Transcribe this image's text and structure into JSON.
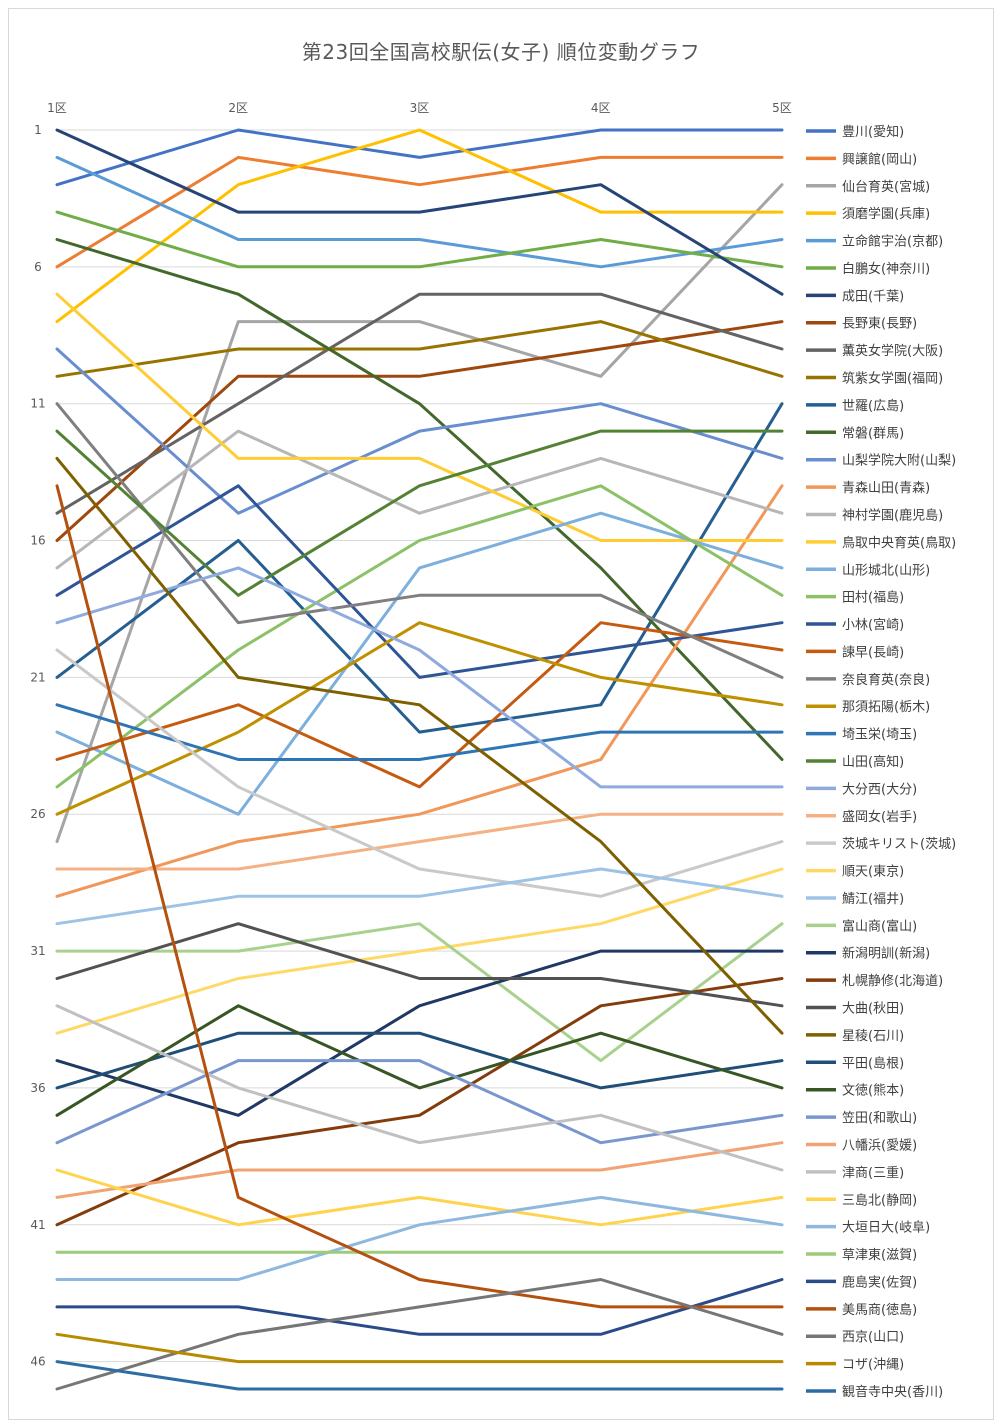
{
  "chart_data": {
    "type": "line",
    "title": "第23回全国高校駅伝(女子) 順位変動グラフ",
    "categories": [
      "1区",
      "2区",
      "3区",
      "4区",
      "5区"
    ],
    "y_ticks": [
      1,
      6,
      11,
      16,
      21,
      26,
      31,
      36,
      41,
      46
    ],
    "ylim": [
      1,
      47
    ],
    "y_inverted": true,
    "grid": true,
    "legend_position": "right",
    "series": [
      {
        "name": "豊川(愛知)",
        "color": "#4472C4",
        "values": [
          3,
          1,
          2,
          1,
          1
        ]
      },
      {
        "name": "興譲館(岡山)",
        "color": "#ED7D31",
        "values": [
          6,
          2,
          3,
          2,
          2
        ]
      },
      {
        "name": "仙台育英(宮城)",
        "color": "#A5A5A5",
        "values": [
          27,
          8,
          8,
          10,
          3
        ]
      },
      {
        "name": "須磨学園(兵庫)",
        "color": "#FFC000",
        "values": [
          8,
          3,
          1,
          4,
          4
        ]
      },
      {
        "name": "立命館宇治(京都)",
        "color": "#5B9BD5",
        "values": [
          2,
          5,
          5,
          6,
          5
        ]
      },
      {
        "name": "白鵬女(神奈川)",
        "color": "#70AD47",
        "values": [
          4,
          6,
          6,
          5,
          6
        ]
      },
      {
        "name": "成田(千葉)",
        "color": "#264478",
        "values": [
          1,
          4,
          4,
          3,
          7
        ]
      },
      {
        "name": "長野東(長野)",
        "color": "#9E480E",
        "values": [
          16,
          10,
          10,
          9,
          8
        ]
      },
      {
        "name": "薫英女学院(大阪)",
        "color": "#636363",
        "values": [
          15,
          11,
          7,
          7,
          9
        ]
      },
      {
        "name": "筑紫女学園(福岡)",
        "color": "#997300",
        "values": [
          10,
          9,
          9,
          8,
          10
        ]
      },
      {
        "name": "世羅(広島)",
        "color": "#255E91",
        "values": [
          21,
          16,
          23,
          22,
          11
        ]
      },
      {
        "name": "常磐(群馬)",
        "color": "#43682B",
        "values": [
          5,
          7,
          11,
          17,
          24
        ]
      },
      {
        "name": "山梨学院大附(山梨)",
        "color": "#698ED0",
        "values": [
          9,
          15,
          12,
          11,
          13
        ]
      },
      {
        "name": "青森山田(青森)",
        "color": "#F1975A",
        "values": [
          29,
          27,
          26,
          24,
          14
        ]
      },
      {
        "name": "神村学園(鹿児島)",
        "color": "#B7B7B7",
        "values": [
          17,
          12,
          15,
          13,
          15
        ]
      },
      {
        "name": "鳥取中央育英(鳥取)",
        "color": "#FFCD33",
        "values": [
          7,
          13,
          13,
          16,
          16
        ]
      },
      {
        "name": "山形城北(山形)",
        "color": "#7CAFDD",
        "values": [
          23,
          26,
          17,
          15,
          17
        ]
      },
      {
        "name": "田村(福島)",
        "color": "#8CC168",
        "values": [
          25,
          20,
          16,
          14,
          18
        ]
      },
      {
        "name": "小林(宮崎)",
        "color": "#2F5597",
        "values": [
          18,
          14,
          21,
          20,
          19
        ]
      },
      {
        "name": "諫早(長崎)",
        "color": "#C55A11",
        "values": [
          24,
          22,
          25,
          19,
          20
        ]
      },
      {
        "name": "奈良育英(奈良)",
        "color": "#7F7F7F",
        "values": [
          11,
          19,
          18,
          18,
          21
        ]
      },
      {
        "name": "那須拓陽(栃木)",
        "color": "#BF9000",
        "values": [
          26,
          23,
          19,
          21,
          22
        ]
      },
      {
        "name": "埼玉栄(埼玉)",
        "color": "#2E75B6",
        "values": [
          22,
          24,
          24,
          23,
          23
        ]
      },
      {
        "name": "山田(高知)",
        "color": "#548235",
        "values": [
          12,
          18,
          14,
          12,
          12
        ]
      },
      {
        "name": "大分西(大分)",
        "color": "#8FAADC",
        "values": [
          19,
          17,
          20,
          25,
          25
        ]
      },
      {
        "name": "盛岡女(岩手)",
        "color": "#F4B183",
        "values": [
          28,
          28,
          27,
          26,
          26
        ]
      },
      {
        "name": "茨城キリスト(茨城)",
        "color": "#C9C9C9",
        "values": [
          20,
          25,
          28,
          29,
          27
        ]
      },
      {
        "name": "順天(東京)",
        "color": "#FFD966",
        "values": [
          34,
          32,
          31,
          30,
          28
        ]
      },
      {
        "name": "鯖江(福井)",
        "color": "#9DC3E6",
        "values": [
          30,
          29,
          29,
          28,
          29
        ]
      },
      {
        "name": "富山商(富山)",
        "color": "#A9D18E",
        "values": [
          31,
          31,
          30,
          35,
          30
        ]
      },
      {
        "name": "新潟明訓(新潟)",
        "color": "#203864",
        "values": [
          35,
          37,
          33,
          31,
          31
        ]
      },
      {
        "name": "札幌静修(北海道)",
        "color": "#843C0C",
        "values": [
          41,
          38,
          37,
          33,
          32
        ]
      },
      {
        "name": "大曲(秋田)",
        "color": "#525252",
        "values": [
          32,
          30,
          32,
          32,
          33
        ]
      },
      {
        "name": "星稜(石川)",
        "color": "#7F6000",
        "values": [
          13,
          21,
          22,
          27,
          34
        ]
      },
      {
        "name": "平田(島根)",
        "color": "#1F4E79",
        "values": [
          36,
          34,
          34,
          36,
          35
        ]
      },
      {
        "name": "文徳(熊本)",
        "color": "#375623",
        "values": [
          37,
          33,
          36,
          34,
          36
        ]
      },
      {
        "name": "笠田(和歌山)",
        "color": "#7A96CE",
        "values": [
          38,
          35,
          35,
          38,
          37
        ]
      },
      {
        "name": "八幡浜(愛媛)",
        "color": "#F2A374",
        "values": [
          40,
          39,
          39,
          39,
          38
        ]
      },
      {
        "name": "津商(三重)",
        "color": "#C0C0C0",
        "values": [
          33,
          36,
          38,
          37,
          39
        ]
      },
      {
        "name": "三島北(静岡)",
        "color": "#FFD34D",
        "values": [
          39,
          41,
          40,
          41,
          40
        ]
      },
      {
        "name": "大垣日大(岐阜)",
        "color": "#8FB8DE",
        "values": [
          43,
          43,
          41,
          40,
          41
        ]
      },
      {
        "name": "草津東(滋賀)",
        "color": "#9CCB7C",
        "values": [
          42,
          42,
          42,
          42,
          42
        ]
      },
      {
        "name": "鹿島実(佐賀)",
        "color": "#2A4A8A",
        "values": [
          44,
          44,
          45,
          45,
          43
        ]
      },
      {
        "name": "美馬商(徳島)",
        "color": "#B4510F",
        "values": [
          14,
          40,
          43,
          44,
          44
        ]
      },
      {
        "name": "西京(山口)",
        "color": "#767676",
        "values": [
          47,
          45,
          44,
          43,
          45
        ]
      },
      {
        "name": "コザ(沖縄)",
        "color": "#B88A00",
        "values": [
          45,
          46,
          46,
          46,
          46
        ]
      },
      {
        "name": "観音寺中央(香川)",
        "color": "#2E6DA4",
        "values": [
          46,
          47,
          47,
          47,
          47
        ]
      }
    ]
  }
}
